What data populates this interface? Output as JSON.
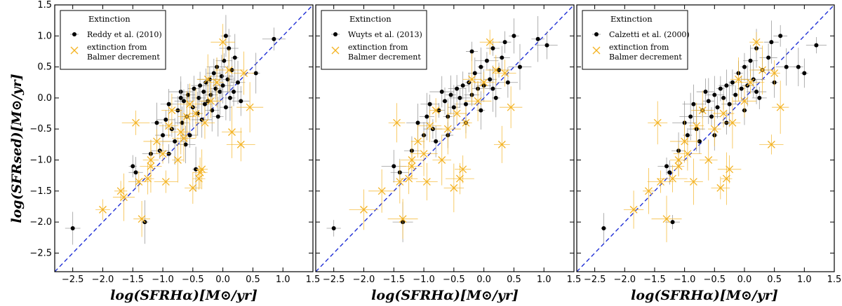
{
  "chart_data": [
    {
      "type": "scatter",
      "panel": "left",
      "xlim": [
        -2.8,
        1.5
      ],
      "ylim": [
        -2.8,
        1.5
      ],
      "xticks": [
        -2.5,
        -2.0,
        -1.5,
        -1.0,
        -0.5,
        0.0,
        0.5,
        1.0,
        1.5
      ],
      "xtick_labels": [
        "−2.5",
        "−2.0",
        "−1.5",
        "−1.0",
        "−0.5",
        "0.0",
        "0.5",
        "1.0",
        "1.5"
      ],
      "yticks": [
        -2.5,
        -2.0,
        -1.5,
        -1.0,
        -0.5,
        0.0,
        0.5,
        1.0,
        1.5
      ],
      "ytick_labels": [
        "−2.5",
        "−2.0",
        "−1.5",
        "−1.0",
        "−0.5",
        "0.0",
        "0.5",
        "1.0",
        "1.5"
      ],
      "xlabel": "log(SFRHα)[M⊙/yr]",
      "ylabel": "log(SFRsed)[M⊙/yr]",
      "legend": {
        "title": "Extinction",
        "entries": [
          "Reddy et al. (2010)",
          "extinction from",
          "Balmer decrement"
        ]
      },
      "one_to_one_line": true,
      "series": [
        {
          "name": "Reddy et al. (2010)",
          "marker": "dot",
          "color": "#000000",
          "points": [
            [
              -2.5,
              -2.1
            ],
            [
              -1.5,
              -1.1
            ],
            [
              -1.45,
              -1.2
            ],
            [
              -1.3,
              -2.0
            ],
            [
              -1.2,
              -0.9
            ],
            [
              -1.1,
              -0.4
            ],
            [
              -1.05,
              -0.85
            ],
            [
              -1.0,
              -0.6
            ],
            [
              -0.95,
              -0.35
            ],
            [
              -0.9,
              -0.1
            ],
            [
              -0.85,
              -0.5
            ],
            [
              -0.8,
              -0.7
            ],
            [
              -0.75,
              -0.2
            ],
            [
              -0.7,
              0.1
            ],
            [
              -0.68,
              -0.4
            ],
            [
              -0.65,
              -0.05
            ],
            [
              -0.6,
              -0.3
            ],
            [
              -0.58,
              0.05
            ],
            [
              -0.55,
              -0.6
            ],
            [
              -0.5,
              -0.15
            ],
            [
              -0.48,
              0.15
            ],
            [
              -0.45,
              -1.15
            ],
            [
              -0.42,
              -0.25
            ],
            [
              -0.4,
              0.0
            ],
            [
              -0.38,
              0.2
            ],
            [
              -0.35,
              -0.35
            ],
            [
              -0.32,
              0.1
            ],
            [
              -0.3,
              -0.1
            ],
            [
              -0.28,
              0.25
            ],
            [
              -0.25,
              -0.05
            ],
            [
              -0.22,
              0.3
            ],
            [
              -0.2,
              0.05
            ],
            [
              -0.18,
              -0.2
            ],
            [
              -0.15,
              0.4
            ],
            [
              -0.12,
              0.15
            ],
            [
              -0.1,
              0.5
            ],
            [
              -0.08,
              -0.3
            ],
            [
              -0.05,
              0.1
            ],
            [
              -0.02,
              0.35
            ],
            [
              0.0,
              0.2
            ],
            [
              0.02,
              0.6
            ],
            [
              0.05,
              -0.15
            ],
            [
              0.08,
              0.3
            ],
            [
              0.1,
              0.8
            ],
            [
              0.12,
              0.0
            ],
            [
              0.15,
              0.45
            ],
            [
              0.18,
              0.1
            ],
            [
              0.2,
              0.65
            ],
            [
              0.25,
              0.25
            ],
            [
              0.3,
              -0.05
            ],
            [
              0.55,
              0.4
            ],
            [
              0.85,
              0.95
            ],
            [
              -0.9,
              -0.9
            ],
            [
              -0.62,
              -0.75
            ],
            [
              -0.7,
              0.0
            ],
            [
              0.05,
              1.0
            ]
          ]
        },
        {
          "name": "extinction from Balmer decrement",
          "marker": "x",
          "color": "#f4b323",
          "points": [
            [
              -2.0,
              -1.8
            ],
            [
              -1.7,
              -1.5
            ],
            [
              -1.65,
              -1.6
            ],
            [
              -1.45,
              -0.4
            ],
            [
              -1.4,
              -1.35
            ],
            [
              -1.35,
              -1.95
            ],
            [
              -1.25,
              -1.3
            ],
            [
              -1.2,
              -1.0
            ],
            [
              -1.1,
              -0.7
            ],
            [
              -1.0,
              -0.9
            ],
            [
              -0.95,
              -1.35
            ],
            [
              -0.9,
              -0.45
            ],
            [
              -0.85,
              -0.2
            ],
            [
              -0.75,
              -1.0
            ],
            [
              -0.7,
              -0.55
            ],
            [
              -0.6,
              -0.3
            ],
            [
              -0.55,
              -0.1
            ],
            [
              -0.5,
              -1.45
            ],
            [
              -0.45,
              -0.25
            ],
            [
              -0.4,
              -1.3
            ],
            [
              -0.38,
              -1.2
            ],
            [
              -0.35,
              -1.15
            ],
            [
              -0.3,
              -0.4
            ],
            [
              -0.25,
              0.3
            ],
            [
              -0.2,
              -0.05
            ],
            [
              -0.1,
              0.25
            ],
            [
              0.0,
              0.9
            ],
            [
              0.1,
              0.45
            ],
            [
              0.15,
              -0.55
            ],
            [
              0.3,
              -0.75
            ],
            [
              0.35,
              0.4
            ],
            [
              0.45,
              -0.15
            ],
            [
              -1.2,
              -1.1
            ],
            [
              -0.65,
              -0.65
            ]
          ]
        }
      ]
    },
    {
      "type": "scatter",
      "panel": "middle",
      "xlim": [
        -2.8,
        1.5
      ],
      "ylim": [
        -2.8,
        1.5
      ],
      "xticks": [
        -2.5,
        -2.0,
        -1.5,
        -1.0,
        -0.5,
        0.0,
        0.5,
        1.0,
        1.5
      ],
      "xtick_labels": [
        "−2.5",
        "−2.0",
        "−1.5",
        "−1.0",
        "−0.5",
        "0.0",
        "0.5",
        "1.0",
        "1.5"
      ],
      "xlabel": "log(SFRHα)[M⊙/yr]",
      "legend": {
        "title": "Extinction",
        "entries": [
          "Wuyts et al. (2013)",
          "extinction from",
          "Balmer decrement"
        ]
      },
      "one_to_one_line": true,
      "series": [
        {
          "name": "Wuyts et al. (2013)",
          "marker": "dot",
          "color": "#000000",
          "points": [
            [
              -2.5,
              -2.1
            ],
            [
              -1.5,
              -1.1
            ],
            [
              -1.4,
              -1.2
            ],
            [
              -1.35,
              -2.0
            ],
            [
              -1.2,
              -0.85
            ],
            [
              -1.1,
              -0.4
            ],
            [
              -1.0,
              -0.6
            ],
            [
              -0.95,
              -0.3
            ],
            [
              -0.9,
              -0.1
            ],
            [
              -0.85,
              -0.5
            ],
            [
              -0.8,
              -0.7
            ],
            [
              -0.75,
              -0.2
            ],
            [
              -0.7,
              0.1
            ],
            [
              -0.65,
              -0.05
            ],
            [
              -0.6,
              -0.3
            ],
            [
              -0.55,
              0.05
            ],
            [
              -0.5,
              -0.15
            ],
            [
              -0.45,
              0.15
            ],
            [
              -0.4,
              0.0
            ],
            [
              -0.35,
              0.2
            ],
            [
              -0.3,
              -0.1
            ],
            [
              -0.25,
              0.25
            ],
            [
              -0.2,
              0.05
            ],
            [
              -0.15,
              0.4
            ],
            [
              -0.1,
              0.15
            ],
            [
              -0.05,
              0.5
            ],
            [
              0.0,
              0.2
            ],
            [
              0.05,
              0.6
            ],
            [
              0.1,
              0.3
            ],
            [
              0.15,
              0.8
            ],
            [
              0.2,
              0.0
            ],
            [
              0.25,
              0.45
            ],
            [
              0.3,
              0.65
            ],
            [
              0.35,
              0.9
            ],
            [
              0.4,
              0.25
            ],
            [
              0.5,
              1.0
            ],
            [
              0.6,
              0.5
            ],
            [
              0.9,
              0.95
            ],
            [
              1.05,
              0.85
            ],
            [
              -0.3,
              -0.4
            ],
            [
              -0.05,
              -0.2
            ],
            [
              0.15,
              0.15
            ],
            [
              -0.6,
              -0.6
            ],
            [
              -0.2,
              0.75
            ]
          ]
        },
        {
          "name": "extinction from Balmer decrement",
          "marker": "x",
          "color": "#f4b323",
          "points": [
            [
              -2.0,
              -1.8
            ],
            [
              -1.7,
              -1.5
            ],
            [
              -1.45,
              -0.4
            ],
            [
              -1.4,
              -1.35
            ],
            [
              -1.35,
              -1.95
            ],
            [
              -1.25,
              -1.3
            ],
            [
              -1.2,
              -1.0
            ],
            [
              -1.1,
              -0.7
            ],
            [
              -1.0,
              -0.9
            ],
            [
              -0.95,
              -1.35
            ],
            [
              -0.9,
              -0.45
            ],
            [
              -0.8,
              -0.2
            ],
            [
              -0.7,
              -1.0
            ],
            [
              -0.6,
              -0.5
            ],
            [
              -0.5,
              -1.45
            ],
            [
              -0.45,
              -0.25
            ],
            [
              -0.4,
              -1.3
            ],
            [
              -0.35,
              -1.15
            ],
            [
              -0.3,
              -0.4
            ],
            [
              -0.2,
              0.3
            ],
            [
              -0.1,
              -0.05
            ],
            [
              0.0,
              0.25
            ],
            [
              0.1,
              0.9
            ],
            [
              0.2,
              0.45
            ],
            [
              0.3,
              -0.75
            ],
            [
              0.35,
              0.4
            ],
            [
              0.45,
              -0.15
            ],
            [
              -1.2,
              -1.1
            ]
          ]
        }
      ]
    },
    {
      "type": "scatter",
      "panel": "right",
      "xlim": [
        -2.8,
        1.5
      ],
      "ylim": [
        -2.8,
        1.5
      ],
      "xticks": [
        -2.5,
        -2.0,
        -1.5,
        -1.0,
        -0.5,
        0.0,
        0.5,
        1.0,
        1.5
      ],
      "xtick_labels": [
        "−2.5",
        "−2.0",
        "−1.5",
        "−1.0",
        "−0.5",
        "0.0",
        "0.5",
        "1.0",
        "1.5"
      ],
      "xlabel": "log(SFRHα)[M⊙/yr]",
      "legend": {
        "title": "Extinction",
        "entries": [
          "Calzetti et al. (2000)",
          "extinction from",
          "Balmer decrement"
        ]
      },
      "one_to_one_line": true,
      "series": [
        {
          "name": "Calzetti et al. (2000)",
          "marker": "dot",
          "color": "#000000",
          "points": [
            [
              -2.35,
              -2.1
            ],
            [
              -1.2,
              -2.0
            ],
            [
              -1.3,
              -1.1
            ],
            [
              -1.25,
              -1.2
            ],
            [
              -1.1,
              -0.85
            ],
            [
              -1.0,
              -0.4
            ],
            [
              -0.95,
              -0.6
            ],
            [
              -0.9,
              -0.3
            ],
            [
              -0.85,
              -0.1
            ],
            [
              -0.8,
              -0.5
            ],
            [
              -0.75,
              -0.7
            ],
            [
              -0.7,
              -0.2
            ],
            [
              -0.65,
              0.1
            ],
            [
              -0.6,
              -0.05
            ],
            [
              -0.55,
              -0.3
            ],
            [
              -0.5,
              0.05
            ],
            [
              -0.45,
              -0.15
            ],
            [
              -0.4,
              0.15
            ],
            [
              -0.35,
              0.0
            ],
            [
              -0.3,
              0.2
            ],
            [
              -0.25,
              -0.1
            ],
            [
              -0.2,
              0.25
            ],
            [
              -0.15,
              0.05
            ],
            [
              -0.1,
              0.4
            ],
            [
              -0.05,
              0.15
            ],
            [
              0.0,
              0.5
            ],
            [
              0.05,
              0.2
            ],
            [
              0.1,
              0.6
            ],
            [
              0.15,
              0.3
            ],
            [
              0.2,
              0.8
            ],
            [
              0.25,
              0.0
            ],
            [
              0.3,
              0.45
            ],
            [
              0.4,
              0.65
            ],
            [
              0.45,
              0.9
            ],
            [
              0.5,
              0.25
            ],
            [
              0.6,
              1.0
            ],
            [
              0.7,
              0.5
            ],
            [
              0.9,
              0.5
            ],
            [
              1.0,
              0.4
            ],
            [
              1.2,
              0.85
            ],
            [
              -0.3,
              -0.4
            ],
            [
              0.0,
              -0.2
            ],
            [
              0.2,
              0.1
            ],
            [
              -0.5,
              -0.6
            ]
          ]
        },
        {
          "name": "extinction from Balmer decrement",
          "marker": "x",
          "color": "#f4b323",
          "points": [
            [
              -1.85,
              -1.8
            ],
            [
              -1.6,
              -1.5
            ],
            [
              -1.45,
              -0.4
            ],
            [
              -1.4,
              -1.35
            ],
            [
              -1.3,
              -1.95
            ],
            [
              -1.2,
              -1.3
            ],
            [
              -1.1,
              -1.0
            ],
            [
              -1.0,
              -0.7
            ],
            [
              -0.95,
              -0.9
            ],
            [
              -0.85,
              -1.35
            ],
            [
              -0.8,
              -0.45
            ],
            [
              -0.7,
              -0.2
            ],
            [
              -0.6,
              -1.0
            ],
            [
              -0.5,
              -0.5
            ],
            [
              -0.4,
              -1.45
            ],
            [
              -0.35,
              -0.25
            ],
            [
              -0.3,
              -1.3
            ],
            [
              -0.25,
              -1.15
            ],
            [
              -0.2,
              -0.4
            ],
            [
              -0.1,
              0.3
            ],
            [
              0.0,
              -0.05
            ],
            [
              0.1,
              0.25
            ],
            [
              0.2,
              0.9
            ],
            [
              0.3,
              0.45
            ],
            [
              0.45,
              -0.75
            ],
            [
              0.5,
              0.4
            ],
            [
              0.6,
              -0.15
            ],
            [
              -1.1,
              -1.1
            ]
          ]
        }
      ]
    }
  ]
}
